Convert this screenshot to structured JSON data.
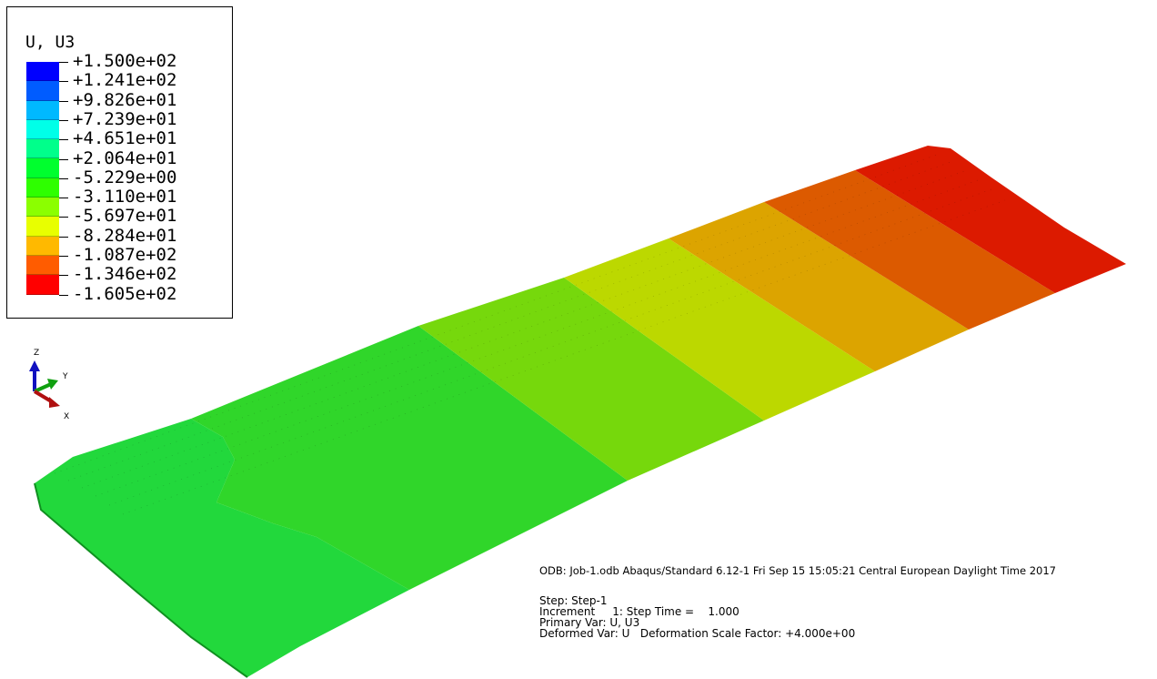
{
  "legend": {
    "title": "U, U3",
    "colors": [
      "#0000ff",
      "#005cff",
      "#00b9ff",
      "#00ffe8",
      "#00ff8b",
      "#00ff2e",
      "#2eff00",
      "#8bff00",
      "#e8ff00",
      "#ffb900",
      "#ff5c00",
      "#ff0000"
    ],
    "labels": [
      "+1.500e+02",
      "+1.241e+02",
      "+9.826e+01",
      "+7.239e+01",
      "+4.651e+01",
      "+2.064e+01",
      "-5.229e+00",
      "-3.110e+01",
      "-5.697e+01",
      "-8.284e+01",
      "-1.087e+02",
      "-1.346e+02",
      "-1.605e+02"
    ]
  },
  "triad": {
    "z_label": "Z",
    "y_label": "Y",
    "x_label": "X"
  },
  "info": {
    "odb_line": "ODB: Job-1.odb    Abaqus/Standard 6.12-1    Fri Sep 15 15:05:21 Central European Daylight Time 2017",
    "step": "Step: Step-1",
    "increment": "Increment     1: Step Time =    1.000",
    "primary_var": "Primary Var: U, U3",
    "deformed_var": "Deformed Var: U   Deformation Scale Factor: +4.000e+00"
  },
  "contour_bands": [
    "#22d83c",
    "#3ed622",
    "#78d80a",
    "#bcd800",
    "#dcb400",
    "#dc7a00",
    "#dc1a00"
  ]
}
